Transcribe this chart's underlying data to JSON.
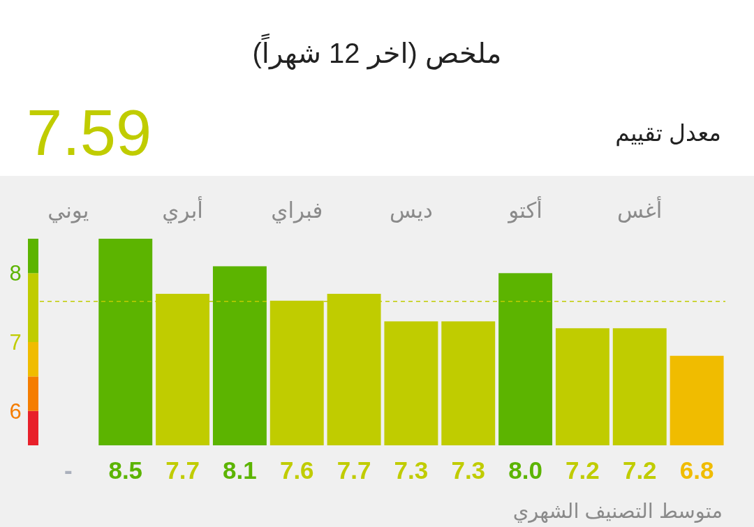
{
  "chart_data": {
    "type": "bar",
    "title": "ملخص (اخر 12 شهراً)",
    "subtitle": "7.59",
    "annotations": [
      "معدل تقييم"
    ],
    "xlabel": "متوسط التصنيف الشهري",
    "categories": [
      "يوني",
      null,
      "أبري",
      null,
      "فبراي",
      null,
      "ديس",
      null,
      "أكتو",
      null,
      "أغس",
      null
    ],
    "values": [
      null,
      8.5,
      7.7,
      8.1,
      7.6,
      7.7,
      7.3,
      7.3,
      8.0,
      7.2,
      7.2,
      6.8
    ],
    "colors": [
      "#aab0bc",
      "#5cb400",
      "#c0cc00",
      "#5cb400",
      "#c0cc00",
      "#c0cc00",
      "#c0cc00",
      "#c0cc00",
      "#5cb400",
      "#c0cc00",
      "#c0cc00",
      "#f0bc00"
    ],
    "value_labels": [
      "-",
      "8.5",
      "7.7",
      "8.1",
      "7.6",
      "7.7",
      "7.3",
      "7.3",
      "8.0",
      "7.2",
      "7.2",
      "6.8"
    ],
    "ylim": [
      5.5,
      8.5
    ],
    "yticks": [
      6,
      7,
      8
    ],
    "grid": false,
    "ref_lines": [
      {
        "axis": "y",
        "value": 7.59,
        "color": "#c0cc00",
        "line_style": "dashed"
      }
    ]
  }
}
